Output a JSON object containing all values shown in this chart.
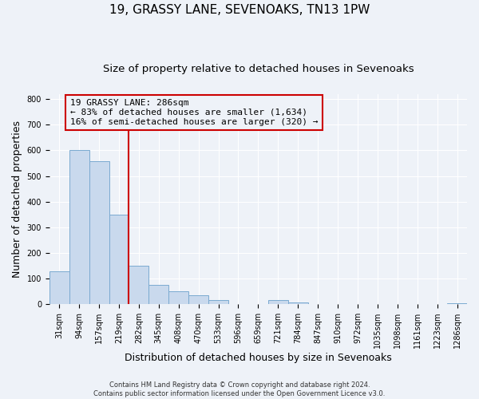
{
  "title": "19, GRASSY LANE, SEVENOAKS, TN13 1PW",
  "subtitle": "Size of property relative to detached houses in Sevenoaks",
  "xlabel": "Distribution of detached houses by size in Sevenoaks",
  "ylabel": "Number of detached properties",
  "bar_labels": [
    "31sqm",
    "94sqm",
    "157sqm",
    "219sqm",
    "282sqm",
    "345sqm",
    "408sqm",
    "470sqm",
    "533sqm",
    "596sqm",
    "659sqm",
    "721sqm",
    "784sqm",
    "847sqm",
    "910sqm",
    "972sqm",
    "1035sqm",
    "1098sqm",
    "1161sqm",
    "1223sqm",
    "1286sqm"
  ],
  "bar_heights": [
    128,
    600,
    557,
    350,
    150,
    75,
    52,
    35,
    15,
    0,
    0,
    15,
    7,
    0,
    0,
    0,
    0,
    0,
    0,
    0,
    5
  ],
  "bar_color": "#c9d9ed",
  "bar_edge_color": "#7aaad0",
  "vline_x": 4,
  "vline_color": "#cc0000",
  "annotation_title": "19 GRASSY LANE: 286sqm",
  "annotation_line1": "← 83% of detached houses are smaller (1,634)",
  "annotation_line2": "16% of semi-detached houses are larger (320) →",
  "annotation_box_color": "#cc0000",
  "ylim": [
    0,
    820
  ],
  "yticks": [
    0,
    100,
    200,
    300,
    400,
    500,
    600,
    700,
    800
  ],
  "footer1": "Contains HM Land Registry data © Crown copyright and database right 2024.",
  "footer2": "Contains public sector information licensed under the Open Government Licence v3.0.",
  "bg_color": "#eef2f8",
  "grid_color": "#ffffff",
  "title_fontsize": 11,
  "subtitle_fontsize": 9.5,
  "label_fontsize": 9,
  "tick_fontsize": 7,
  "footer_fontsize": 6,
  "annot_fontsize": 8
}
